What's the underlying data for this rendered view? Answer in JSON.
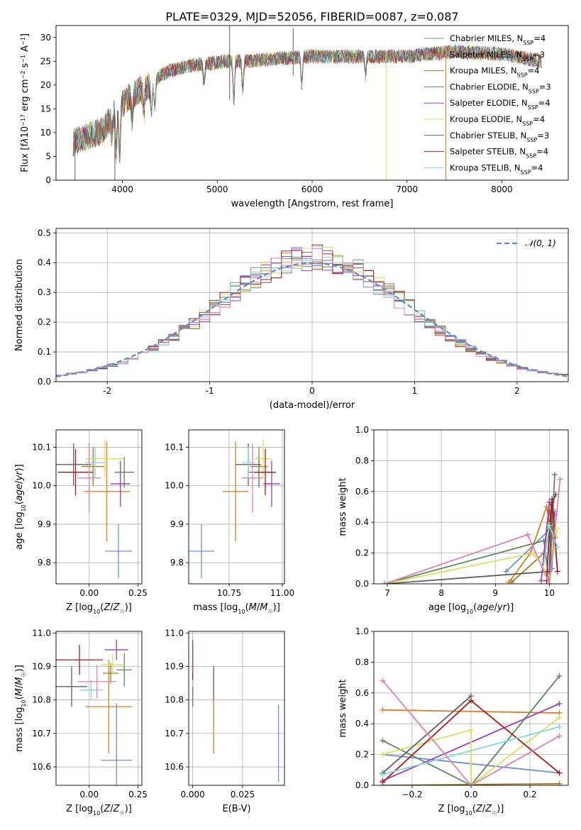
{
  "title": "PLATE=0329, MJD=52056, FIBERID=0087, z=0.087",
  "colors": {
    "Chabrier MILES": "#6f8fd8",
    "Salpeter MILES": "#e07b28",
    "Kroupa MILES": "#a07a20",
    "Chabrier ELODIE": "#5a8a5a",
    "Salpeter ELODIE": "#9a3fb5",
    "Kroupa ELODIE": "#d6e35a",
    "Chabrier STELIB": "#606060",
    "Salpeter STELIB": "#b01818",
    "Kroupa STELIB": "#7fd8e0",
    "pink": "#e080b0",
    "gaussian": "#5b8bd0"
  },
  "chart_data": [
    {
      "id": "spectrum",
      "type": "line",
      "xlabel": "wavelength [Angstrom, rest frame]",
      "ylabel_html": "Flux [f<tspan font-style='italic'>λ</tspan>10<tspan baseline-shift='super' font-size='8'>−17</tspan> erg cm<tspan baseline-shift='super' font-size='8'>−2</tspan> s<tspan baseline-shift='super' font-size='8'>−1</tspan> A<tspan baseline-shift='super' font-size='8'>−1</tspan>]",
      "xlim": [
        3300,
        8700
      ],
      "ylim": [
        0,
        32.5
      ],
      "xticks": [
        4000,
        5000,
        6000,
        7000,
        8000
      ],
      "yticks": [
        0,
        5,
        10,
        15,
        20,
        25,
        30
      ],
      "legend": "top-right",
      "series": [
        {
          "name": "Chabrier MILES",
          "nssp": "4"
        },
        {
          "name": "Salpeter MILES",
          "nssp": "3"
        },
        {
          "name": "Kroupa MILES",
          "nssp": "4"
        },
        {
          "name": "Chabrier ELODIE",
          "nssp": "3"
        },
        {
          "name": "Salpeter ELODIE",
          "nssp": "4"
        },
        {
          "name": "Kroupa ELODIE",
          "nssp": "4"
        },
        {
          "name": "Chabrier STELIB",
          "nssp": "3"
        },
        {
          "name": "Salpeter STELIB",
          "nssp": "4"
        },
        {
          "name": "Kroupa STELIB",
          "nssp": "4"
        }
      ],
      "continuum": [
        [
          3480,
          8
        ],
        [
          3600,
          9
        ],
        [
          3800,
          10.5
        ],
        [
          3900,
          14
        ],
        [
          4000,
          16
        ],
        [
          4100,
          18
        ],
        [
          4200,
          19
        ],
        [
          4300,
          20
        ],
        [
          4400,
          22
        ],
        [
          4500,
          23
        ],
        [
          4700,
          24
        ],
        [
          4900,
          24.5
        ],
        [
          5100,
          25
        ],
        [
          5300,
          25
        ],
        [
          5600,
          25.5
        ],
        [
          6000,
          26
        ],
        [
          6500,
          26
        ],
        [
          7000,
          26
        ],
        [
          7200,
          26.5
        ],
        [
          7500,
          27
        ],
        [
          8000,
          26.5
        ],
        [
          8400,
          25
        ]
      ],
      "dips": [
        [
          3890,
          9.5
        ],
        [
          3935,
          6
        ],
        [
          3970,
          5.5
        ],
        [
          4102,
          13
        ],
        [
          4226,
          14
        ],
        [
          4304,
          14
        ],
        [
          4340,
          15
        ],
        [
          4861,
          20
        ],
        [
          5175,
          16.5
        ],
        [
          5270,
          19
        ],
        [
          5890,
          20
        ],
        [
          6563,
          22
        ]
      ],
      "spikes": [
        [
          3500,
          0,
          10
        ],
        [
          3920,
          0,
          14
        ],
        [
          5130,
          17,
          32.5
        ],
        [
          5800,
          22,
          32
        ],
        [
          6780,
          0,
          27
        ],
        [
          7410,
          0,
          28
        ]
      ]
    },
    {
      "id": "residual-hist",
      "type": "histogram",
      "xlabel": "(data-model)/error",
      "ylabel": "Normed distribution",
      "xlim": [
        -2.5,
        2.5
      ],
      "ylim": [
        0,
        0.515
      ],
      "xticks": [
        -2,
        -1,
        0,
        1,
        2
      ],
      "yticks": [
        0.0,
        0.1,
        0.2,
        0.3,
        0.4,
        0.5
      ],
      "legend_label": "𝒩(0, 1)",
      "bin_edges_start": -2.5,
      "bin_width": 0.1
    },
    {
      "id": "age-vs-Z",
      "type": "errorbar",
      "xlabel_html": "Z [log<tspan baseline-shift='sub' font-size='8'>10</tspan>(<tspan font-style='italic'>Z</tspan>/<tspan font-style='italic'>Z</tspan><tspan baseline-shift='sub' font-size='8'>☉</tspan>)]",
      "ylabel_html": "age  [log<tspan baseline-shift='sub' font-size='8'>10</tspan>(<tspan font-style='italic'>age</tspan>/<tspan font-style='italic'>yr</tspan>)]",
      "xlim": [
        -0.17,
        0.27
      ],
      "ylim": [
        9.745,
        10.145
      ],
      "xticks": [
        0.0,
        0.25
      ],
      "xticklabels": [
        "0.00",
        "0.25"
      ],
      "yticks": [
        9.8,
        9.9,
        10.0,
        10.1
      ],
      "points": [
        {
          "s": "Chabrier MILES",
          "x": 0.15,
          "xe": 0.07,
          "y": 9.83,
          "ye": 0.07
        },
        {
          "s": "Salpeter MILES",
          "x": 0.09,
          "xe": 0.12,
          "y": 9.985,
          "ye": 0.13
        },
        {
          "s": "Kroupa MILES",
          "x": 0.02,
          "xe": 0.06,
          "y": 10.05,
          "ye": 0.05
        },
        {
          "s": "Chabrier ELODIE",
          "x": 0.18,
          "xe": 0.05,
          "y": 10.035,
          "ye": 0.04
        },
        {
          "s": "Salpeter ELODIE",
          "x": 0.16,
          "xe": 0.05,
          "y": 10.005,
          "ye": 0.06
        },
        {
          "s": "Kroupa ELODIE",
          "x": 0.08,
          "xe": 0.1,
          "y": 10.07,
          "ye": 0.05
        },
        {
          "s": "Chabrier STELIB",
          "x": -0.08,
          "xe": 0.09,
          "y": 10.055,
          "ye": 0.055
        },
        {
          "s": "Salpeter STELIB",
          "x": -0.07,
          "xe": 0.09,
          "y": 10.035,
          "ye": 0.06
        },
        {
          "s": "Kroupa STELIB",
          "x": 0.03,
          "xe": 0.05,
          "y": 10.06,
          "ye": 0.04
        },
        {
          "s": "pink",
          "x": 0.0,
          "xe": 0.06,
          "y": 10.02,
          "ye": 0.09
        }
      ]
    },
    {
      "id": "age-vs-mass",
      "type": "errorbar",
      "xlabel_html": "mass [log<tspan baseline-shift='sub' font-size='8'>10</tspan>(<tspan font-style='italic'>M</tspan>/<tspan font-style='italic'>M</tspan><tspan baseline-shift='sub' font-size='8'>☉</tspan>)]",
      "xlim": [
        10.56,
        11.01
      ],
      "ylim": [
        9.745,
        10.145
      ],
      "xticks": [
        10.75,
        11.0
      ],
      "xticklabels": [
        "10.75",
        "11.00"
      ],
      "yticks": [
        9.8,
        9.9,
        10.0,
        10.1
      ],
      "points": [
        {
          "s": "Chabrier MILES",
          "x": 10.62,
          "xe": 0.06,
          "y": 9.83,
          "ye": 0.07
        },
        {
          "s": "Salpeter MILES",
          "x": 10.78,
          "xe": 0.06,
          "y": 9.985,
          "ye": 0.13
        },
        {
          "s": "Kroupa MILES",
          "x": 10.89,
          "xe": 0.04,
          "y": 10.05,
          "ye": 0.05
        },
        {
          "s": "Chabrier ELODIE",
          "x": 10.89,
          "xe": 0.05,
          "y": 10.035,
          "ye": 0.04
        },
        {
          "s": "Salpeter ELODIE",
          "x": 10.95,
          "xe": 0.04,
          "y": 10.005,
          "ye": 0.06
        },
        {
          "s": "Kroupa ELODIE",
          "x": 10.91,
          "xe": 0.04,
          "y": 10.07,
          "ye": 0.05
        },
        {
          "s": "Chabrier STELIB",
          "x": 10.84,
          "xe": 0.06,
          "y": 10.055,
          "ye": 0.055
        },
        {
          "s": "Salpeter STELIB",
          "x": 10.92,
          "xe": 0.05,
          "y": 10.035,
          "ye": 0.06
        },
        {
          "s": "Kroupa STELIB",
          "x": 10.84,
          "xe": 0.03,
          "y": 10.06,
          "ye": 0.04
        },
        {
          "s": "pink",
          "x": 10.86,
          "xe": 0.05,
          "y": 10.02,
          "ye": 0.09
        }
      ]
    },
    {
      "id": "mass-weight-vs-age",
      "type": "line",
      "xlabel_html": "age  [log<tspan baseline-shift='sub' font-size='8'>10</tspan>(<tspan font-style='italic'>age</tspan>/<tspan font-style='italic'>yr</tspan>)]",
      "ylabel": "mass weight",
      "xlim": [
        6.75,
        10.35
      ],
      "ylim": [
        0,
        1
      ],
      "xticks": [
        7,
        8,
        9,
        10
      ],
      "yticks": [
        0.0,
        0.2,
        0.4,
        0.6,
        0.8,
        1.0
      ],
      "series": [
        {
          "s": "Chabrier MILES",
          "pts": [
            [
              9.2,
              0.08
            ],
            [
              10.0,
              0.35
            ],
            [
              10.05,
              0.1
            ],
            [
              10.1,
              0.47
            ]
          ]
        },
        {
          "s": "Salpeter MILES",
          "pts": [
            [
              9.25,
              0.01
            ],
            [
              9.65,
              0.2
            ],
            [
              9.95,
              0.5
            ],
            [
              10.05,
              0.3
            ]
          ]
        },
        {
          "s": "Kroupa MILES",
          "pts": [
            [
              9.3,
              0.01
            ],
            [
              9.9,
              0.2
            ],
            [
              10.0,
              0.48
            ],
            [
              10.1,
              0.3
            ]
          ]
        },
        {
          "s": "Chabrier ELODIE",
          "pts": [
            [
              6.95,
              0.0
            ],
            [
              9.9,
              0.28
            ],
            [
              10.0,
              0.0
            ],
            [
              10.1,
              0.71
            ]
          ]
        },
        {
          "s": "Salpeter ELODIE",
          "pts": [
            [
              9.85,
              0.02
            ],
            [
              10.0,
              0.53
            ],
            [
              10.1,
              0.45
            ]
          ]
        },
        {
          "s": "Kroupa ELODIE",
          "pts": [
            [
              6.95,
              0.0
            ],
            [
              9.7,
              0.2
            ],
            [
              10.0,
              0.05
            ],
            [
              10.15,
              0.36
            ]
          ]
        },
        {
          "s": "Chabrier STELIB",
          "pts": [
            [
              6.95,
              0.0
            ],
            [
              10.0,
              0.08
            ],
            [
              10.05,
              0.53
            ],
            [
              10.12,
              0.58
            ]
          ]
        },
        {
          "s": "Salpeter STELIB",
          "pts": [
            [
              9.95,
              0.02
            ],
            [
              10.0,
              0.35
            ],
            [
              10.05,
              0.55
            ],
            [
              10.15,
              0.08
            ]
          ]
        },
        {
          "s": "Kroupa STELIB",
          "pts": [
            [
              9.9,
              0.14
            ],
            [
              10.0,
              0.38
            ],
            [
              10.15,
              0.24
            ]
          ]
        },
        {
          "s": "pink",
          "pts": [
            [
              6.95,
              0.0
            ],
            [
              9.6,
              0.32
            ],
            [
              10.0,
              0.0
            ],
            [
              10.2,
              0.68
            ]
          ]
        }
      ]
    },
    {
      "id": "mass-vs-Z",
      "type": "errorbar",
      "xlabel_html": "Z [log<tspan baseline-shift='sub' font-size='8'>10</tspan>(<tspan font-style='italic'>Z</tspan>/<tspan font-style='italic'>Z</tspan><tspan baseline-shift='sub' font-size='8'>☉</tspan>)]",
      "ylabel_html": "mass [log<tspan baseline-shift='sub' font-size='8'>10</tspan>(<tspan font-style='italic'>M</tspan>/<tspan font-style='italic'>M</tspan><tspan baseline-shift='sub' font-size='8'>☉</tspan>)]",
      "xlim": [
        -0.17,
        0.27
      ],
      "ylim": [
        10.545,
        11.005
      ],
      "xticks": [
        0.0,
        0.25
      ],
      "xticklabels": [
        "0.00",
        "0.25"
      ],
      "yticks": [
        10.6,
        10.7,
        10.8,
        10.9,
        11.0
      ],
      "points": [
        {
          "s": "Chabrier MILES",
          "x": 0.14,
          "xe": 0.08,
          "y": 10.62,
          "ye": 0.17
        },
        {
          "s": "Salpeter MILES",
          "x": 0.1,
          "xe": 0.12,
          "y": 10.78,
          "ye": 0.14
        },
        {
          "s": "Kroupa MILES",
          "x": 0.11,
          "xe": 0.04,
          "y": 10.88,
          "ye": 0.03
        },
        {
          "s": "Chabrier ELODIE",
          "x": 0.18,
          "xe": 0.04,
          "y": 10.89,
          "ye": 0.05
        },
        {
          "s": "Salpeter ELODIE",
          "x": 0.14,
          "xe": 0.06,
          "y": 10.95,
          "ye": 0.03
        },
        {
          "s": "Kroupa ELODIE",
          "x": 0.12,
          "xe": 0.06,
          "y": 10.905,
          "ye": 0.03
        },
        {
          "s": "Chabrier STELIB",
          "x": -0.09,
          "xe": 0.08,
          "y": 10.84,
          "ye": 0.06
        },
        {
          "s": "Salpeter STELIB",
          "x": -0.05,
          "xe": 0.12,
          "y": 10.92,
          "ye": 0.045
        },
        {
          "s": "Kroupa STELIB",
          "x": 0.01,
          "xe": 0.06,
          "y": 10.83,
          "ye": 0.03
        },
        {
          "s": "pink",
          "x": 0.04,
          "xe": 0.1,
          "y": 10.855,
          "ye": 0.05
        }
      ]
    },
    {
      "id": "mass-vs-ebv",
      "type": "errorbar",
      "xlabel": "E(B-V)",
      "xlim": [
        -0.002,
        0.046
      ],
      "ylim": [
        10.545,
        11.005
      ],
      "xticks": [
        0.0,
        0.025
      ],
      "xticklabels": [
        "0.000",
        "0.025"
      ],
      "yticks": [
        10.6,
        10.7,
        10.8,
        10.9,
        11.0
      ],
      "points": [
        {
          "s": "Chabrier MILES",
          "x": 0.043,
          "xe": 0,
          "y": 10.67,
          "ye": 0.115
        },
        {
          "s": "Salpeter MILES",
          "x": 0.0105,
          "xe": 0,
          "y": 10.72,
          "ye": 0.08
        },
        {
          "s": "Chabrier STELIB",
          "x": 0.0105,
          "xe": 0,
          "y": 10.85,
          "ye": 0.05
        },
        {
          "s": "Salpeter STELIB",
          "x": 0.0,
          "xe": 0,
          "y": 10.885,
          "ye": 0.09
        },
        {
          "s": "Salpeter ELODIE",
          "x": 0.0,
          "xe": 0,
          "y": 10.93,
          "ye": 0.05
        },
        {
          "s": "Kroupa STELIB",
          "x": 0.0,
          "xe": 0,
          "y": 10.82,
          "ye": 0.04
        },
        {
          "s": "Chabrier ELODIE",
          "x": 0.0,
          "xe": 0,
          "y": 10.81,
          "ye": 0.03
        }
      ]
    },
    {
      "id": "mass-weight-vs-Z",
      "type": "line",
      "xlabel_html": "Z [log<tspan baseline-shift='sub' font-size='8'>10</tspan>(<tspan font-style='italic'>Z</tspan>/<tspan font-style='italic'>Z</tspan><tspan baseline-shift='sub' font-size='8'>☉</tspan>)]",
      "ylabel": "mass weight",
      "xlim": [
        -0.33,
        0.33
      ],
      "ylim": [
        0,
        1
      ],
      "xticks": [
        -0.2,
        0.0,
        0.2
      ],
      "xticklabels": [
        "−0.2",
        "0.0",
        "0.2"
      ],
      "yticks": [
        0.0,
        0.2,
        0.4,
        0.6,
        0.8,
        1.0
      ],
      "series": [
        {
          "s": "Chabrier MILES",
          "pts": [
            [
              -0.3,
              0.2
            ],
            [
              0.3,
              0.08
            ]
          ]
        },
        {
          "s": "Salpeter MILES",
          "pts": [
            [
              -0.3,
              0.49
            ],
            [
              0.3,
              0.47
            ]
          ]
        },
        {
          "s": "Kroupa MILES",
          "pts": [
            [
              -0.3,
              0.0
            ],
            [
              0.3,
              0.01
            ]
          ]
        },
        {
          "s": "Chabrier ELODIE",
          "pts": [
            [
              -0.3,
              0.29
            ],
            [
              0.0,
              0.0
            ],
            [
              0.3,
              0.71
            ]
          ]
        },
        {
          "s": "Salpeter ELODIE",
          "pts": [
            [
              -0.3,
              0.03
            ],
            [
              0.3,
              0.53
            ]
          ]
        },
        {
          "s": "Kroupa ELODIE",
          "pts": [
            [
              -0.3,
              0.2
            ],
            [
              0.0,
              0.36
            ],
            [
              0.0,
              0.0
            ],
            [
              0.3,
              0.44
            ]
          ]
        },
        {
          "s": "Chabrier STELIB",
          "pts": [
            [
              -0.3,
              0.08
            ],
            [
              0.0,
              0.58
            ]
          ]
        },
        {
          "s": "Salpeter STELIB",
          "pts": [
            [
              -0.3,
              0.02
            ],
            [
              0.0,
              0.55
            ],
            [
              0.3,
              0.08
            ]
          ]
        },
        {
          "s": "Kroupa STELIB",
          "pts": [
            [
              -0.3,
              0.07
            ],
            [
              0.3,
              0.38
            ]
          ]
        },
        {
          "s": "pink",
          "pts": [
            [
              -0.3,
              0.68
            ],
            [
              0.0,
              0.0
            ],
            [
              0.3,
              0.32
            ]
          ]
        }
      ]
    }
  ]
}
